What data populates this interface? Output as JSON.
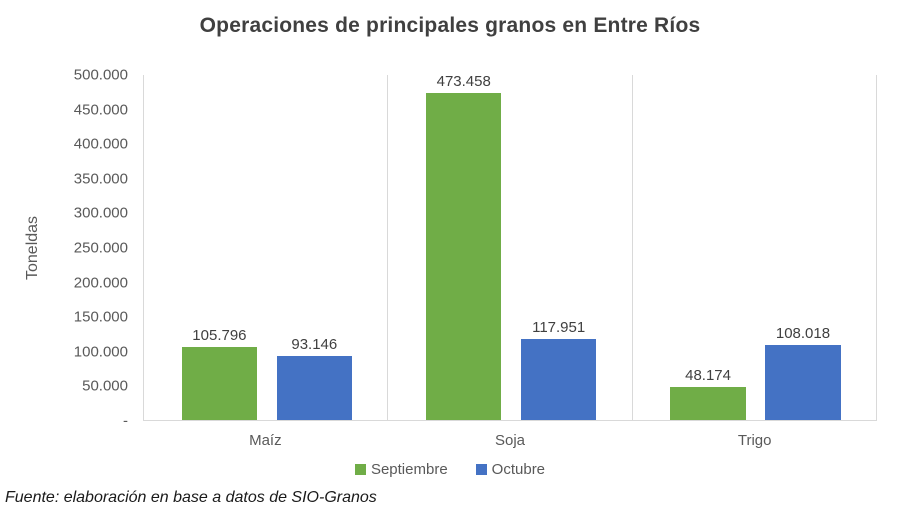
{
  "title": "Operaciones de principales granos en Entre Ríos",
  "source_note": "Fuente: elaboración en base a datos de SIO-Granos",
  "colors": {
    "septiembre": "#70AD47",
    "octubre": "#4472C4",
    "gridline": "#D9D9D9",
    "title_text": "#404040",
    "axis_text": "#595959"
  },
  "chart_data": {
    "type": "bar",
    "title": "Operaciones de principales granos en Entre Ríos",
    "xlabel": "",
    "ylabel": "Toneldas",
    "ylim": [
      0,
      500000
    ],
    "y_tick_step": 50000,
    "y_tick_labels_top_to_bottom": [
      "500.000",
      "450.000",
      "400.000",
      "350.000",
      "300.000",
      "250.000",
      "200.000",
      "150.000",
      "100.000",
      "50.000",
      "-"
    ],
    "grid": "vertical category separators, light gray",
    "legend_position": "bottom",
    "categories": [
      "Maíz",
      "Soja",
      "Trigo"
    ],
    "series": [
      {
        "name": "Septiembre",
        "color": "#70AD47",
        "values": [
          105796,
          473458,
          48174
        ],
        "labels": [
          "105.796",
          "473.458",
          "48.174"
        ]
      },
      {
        "name": "Octubre",
        "color": "#4472C4",
        "values": [
          93146,
          117951,
          108018
        ],
        "labels": [
          "93.146",
          "117.951",
          "108.018"
        ]
      }
    ]
  }
}
